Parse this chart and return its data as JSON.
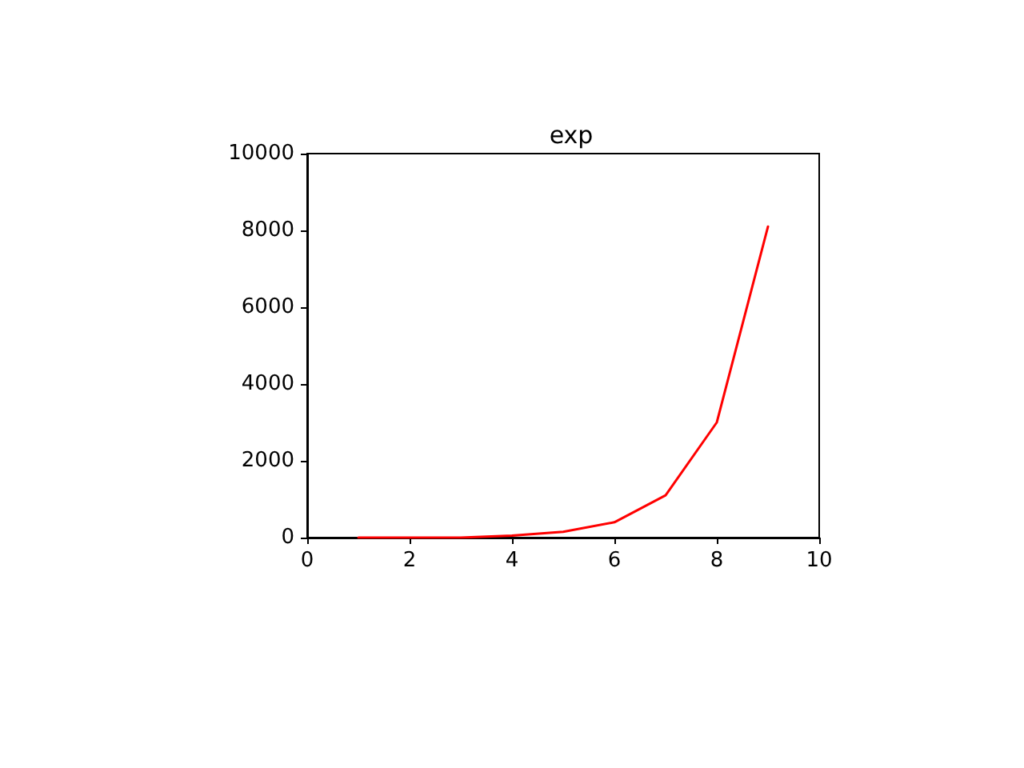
{
  "chart_data": {
    "type": "line",
    "title": "exp",
    "x": [
      1,
      2,
      3,
      4,
      5,
      6,
      7,
      8,
      9
    ],
    "series": [
      {
        "color": "#ff0000",
        "values": [
          0,
          0,
          0,
          50,
          150,
          400,
          1100,
          3000,
          8100
        ]
      }
    ],
    "xlim": [
      0,
      10
    ],
    "xticks": [
      0,
      2,
      4,
      6,
      8,
      10
    ],
    "ylim": [
      0,
      10000
    ],
    "yticks": [
      0,
      2000,
      4000,
      6000,
      8000,
      10000
    ],
    "grid": false,
    "marker": "none",
    "line_style": "solid"
  }
}
